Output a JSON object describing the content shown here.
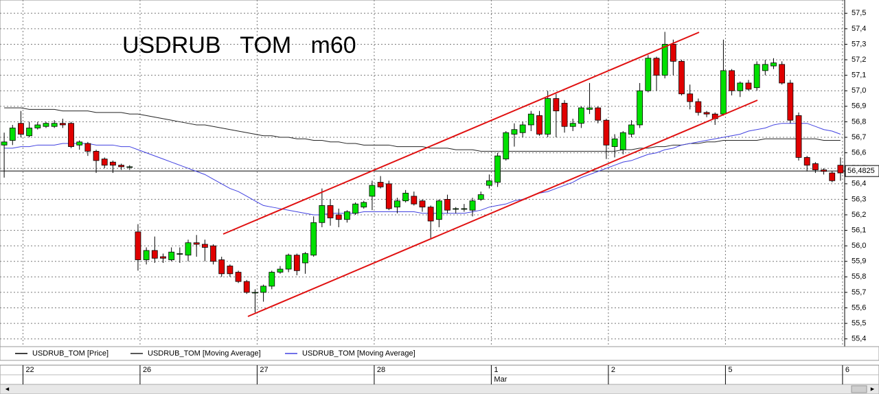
{
  "chart_data": {
    "type": "candlestick",
    "title": "USDRUB   TOM   m60",
    "categories": [
      null,
      null,
      "22",
      null,
      null,
      null,
      null,
      null,
      null,
      null,
      null,
      null,
      null,
      null,
      null,
      null,
      "26",
      null,
      null,
      null,
      null,
      null,
      null,
      null,
      null,
      null,
      null,
      null,
      null,
      null,
      "27",
      null,
      null,
      null,
      null,
      null,
      null,
      null,
      null,
      null,
      null,
      null,
      null,
      null,
      "28",
      null,
      null,
      null,
      null,
      null,
      null,
      null,
      null,
      null,
      null,
      null,
      null,
      null,
      "1",
      null,
      null,
      null,
      null,
      null,
      null,
      null,
      null,
      null,
      null,
      null,
      null,
      null,
      "2",
      null,
      null,
      null,
      null,
      null,
      null,
      null,
      null,
      null,
      null,
      null,
      null,
      null,
      "5",
      null,
      null,
      null,
      null,
      null,
      null,
      null,
      null,
      null,
      null,
      null,
      null,
      null,
      "6"
    ],
    "month_label": "Mar",
    "ylim": [
      55.35,
      57.55
    ],
    "yticks": [
      {
        "value": 55.4,
        "label": "55,4"
      },
      {
        "value": 55.5,
        "label": "55,5"
      },
      {
        "value": 55.6,
        "label": "55,6"
      },
      {
        "value": 55.7,
        "label": "55,7"
      },
      {
        "value": 55.8,
        "label": "55,8"
      },
      {
        "value": 55.9,
        "label": "55,9"
      },
      {
        "value": 56.0,
        "label": "56,0"
      },
      {
        "value": 56.1,
        "label": "56,1"
      },
      {
        "value": 56.2,
        "label": "56,2"
      },
      {
        "value": 56.3,
        "label": "56,3"
      },
      {
        "value": 56.4,
        "label": "56,4"
      },
      {
        "value": 56.5,
        "label": "56,5"
      },
      {
        "value": 56.6,
        "label": "56,6"
      },
      {
        "value": 56.7,
        "label": "56,7"
      },
      {
        "value": 56.8,
        "label": "56,8"
      },
      {
        "value": 56.9,
        "label": "56,9"
      },
      {
        "value": 57.0,
        "label": "57,0"
      },
      {
        "value": 57.1,
        "label": "57,1"
      },
      {
        "value": 57.2,
        "label": "57,2"
      },
      {
        "value": 57.3,
        "label": "57,3"
      },
      {
        "value": 57.4,
        "label": "57,4"
      },
      {
        "value": 57.5,
        "label": "57,5"
      }
    ],
    "grid": true,
    "last_price": {
      "value": 56.4825,
      "label": "56,4825"
    },
    "series": [
      {
        "name": "USDRUB_TOM [Price]",
        "color": "#000000",
        "up_color": "#00e000",
        "down_color": "#e00000",
        "open": [
          56.65,
          56.68,
          56.79,
          56.71,
          56.76,
          56.77,
          56.77,
          56.79,
          56.79,
          56.65,
          56.66,
          56.61,
          56.56,
          56.54,
          56.52,
          56.51,
          56.09,
          55.91,
          55.97,
          55.93,
          55.91,
          55.95,
          55.94,
          56.02,
          56.01,
          56.0,
          55.91,
          55.87,
          55.83,
          55.77,
          55.7,
          55.7,
          55.74,
          55.83,
          55.85,
          55.94,
          55.89,
          55.94,
          56.15,
          56.26,
          56.2,
          56.17,
          56.21,
          56.25,
          56.32,
          56.41,
          56.4,
          56.25,
          56.29,
          56.32,
          56.29,
          56.25,
          56.17,
          56.3,
          56.24,
          56.24,
          56.23,
          56.3,
          56.39,
          56.41,
          56.56,
          56.72,
          56.73,
          56.78,
          56.84,
          56.72,
          56.95,
          56.92,
          56.77,
          56.79,
          56.88,
          56.89,
          56.81,
          56.64,
          56.62,
          56.72,
          56.78,
          57.0,
          57.21,
          57.1,
          57.3,
          57.19,
          56.98,
          56.93,
          56.86,
          56.85,
          56.85,
          57.13,
          57.0,
          57.05,
          57.02,
          57.13,
          57.16,
          57.17,
          57.05,
          56.84,
          56.57,
          56.53,
          56.49,
          56.47,
          56.52
        ],
        "high": [
          56.73,
          56.78,
          56.87,
          56.8,
          56.8,
          56.8,
          56.81,
          56.82,
          56.8,
          56.68,
          56.67,
          56.62,
          56.57,
          56.55,
          56.53,
          56.52,
          56.14,
          55.99,
          56.06,
          55.95,
          55.99,
          55.99,
          56.04,
          56.07,
          56.04,
          56.01,
          55.93,
          55.88,
          55.84,
          55.78,
          55.72,
          55.75,
          55.84,
          55.87,
          55.95,
          55.95,
          55.96,
          56.19,
          56.37,
          56.3,
          56.24,
          56.23,
          56.28,
          56.29,
          56.42,
          56.45,
          56.42,
          56.31,
          56.36,
          56.35,
          56.3,
          56.26,
          56.3,
          56.33,
          56.25,
          56.27,
          56.31,
          56.35,
          56.46,
          56.6,
          56.74,
          56.79,
          56.8,
          56.87,
          56.87,
          57.0,
          56.98,
          56.94,
          56.82,
          56.9,
          57.05,
          56.9,
          56.82,
          56.72,
          56.74,
          56.81,
          57.05,
          57.23,
          57.22,
          57.38,
          57.33,
          57.2,
          57.04,
          56.95,
          56.87,
          56.86,
          57.33,
          57.14,
          57.06,
          57.07,
          57.19,
          57.2,
          57.21,
          57.19,
          57.07,
          56.86,
          56.58,
          56.54,
          56.5,
          56.48,
          56.57
        ],
        "low": [
          56.44,
          56.65,
          56.7,
          56.7,
          56.75,
          56.76,
          56.76,
          56.76,
          56.63,
          56.62,
          56.58,
          56.47,
          56.5,
          56.47,
          56.49,
          56.49,
          55.84,
          55.88,
          55.89,
          55.89,
          55.9,
          55.89,
          55.9,
          55.93,
          55.9,
          55.88,
          55.8,
          55.8,
          55.76,
          55.69,
          55.57,
          55.64,
          55.72,
          55.82,
          55.83,
          55.81,
          55.82,
          55.93,
          56.12,
          56.13,
          56.12,
          56.15,
          56.2,
          56.24,
          56.23,
          56.37,
          56.23,
          56.21,
          56.28,
          56.26,
          56.22,
          56.05,
          56.12,
          56.21,
          56.21,
          56.22,
          56.19,
          56.29,
          56.37,
          56.38,
          56.55,
          56.64,
          56.7,
          56.74,
          56.71,
          56.7,
          56.7,
          56.73,
          56.74,
          56.76,
          56.85,
          56.79,
          56.56,
          56.57,
          56.59,
          56.7,
          56.76,
          56.99,
          57.0,
          57.08,
          57.1,
          56.97,
          56.88,
          56.84,
          56.83,
          56.78,
          56.84,
          56.97,
          56.96,
          57.0,
          57.0,
          57.1,
          57.14,
          57.04,
          56.79,
          56.55,
          56.48,
          56.47,
          56.46,
          56.41,
          56.42
        ],
        "close": [
          56.67,
          56.76,
          56.72,
          56.76,
          56.78,
          56.79,
          56.79,
          56.78,
          56.64,
          56.67,
          56.61,
          56.55,
          56.52,
          56.52,
          56.51,
          56.51,
          55.91,
          55.97,
          55.92,
          55.92,
          55.96,
          55.95,
          56.02,
          56.01,
          55.99,
          55.9,
          55.82,
          55.82,
          55.77,
          55.7,
          55.7,
          55.74,
          55.83,
          55.85,
          55.94,
          55.84,
          55.95,
          56.15,
          56.26,
          56.18,
          56.17,
          56.22,
          56.27,
          56.28,
          56.39,
          56.38,
          56.24,
          56.29,
          56.34,
          56.27,
          56.25,
          56.16,
          56.29,
          56.23,
          56.24,
          56.24,
          56.29,
          56.33,
          56.42,
          56.58,
          56.73,
          56.75,
          56.78,
          56.85,
          56.72,
          56.95,
          56.87,
          56.77,
          56.79,
          56.89,
          56.89,
          56.81,
          56.65,
          56.69,
          56.73,
          56.78,
          57.0,
          57.21,
          57.1,
          57.3,
          57.19,
          56.98,
          56.93,
          56.86,
          56.85,
          56.82,
          57.13,
          57.0,
          57.05,
          57.01,
          57.17,
          57.17,
          57.18,
          57.05,
          56.81,
          56.57,
          56.52,
          56.49,
          56.48,
          56.42,
          56.47
        ]
      },
      {
        "name": "USDRUB_TOM [Moving Average]",
        "color": "#222222",
        "values": [
          56.89,
          56.89,
          56.89,
          56.88,
          56.88,
          56.88,
          56.88,
          56.87,
          56.87,
          56.87,
          56.87,
          56.86,
          56.86,
          56.86,
          56.86,
          56.85,
          56.85,
          56.84,
          56.83,
          56.82,
          56.81,
          56.8,
          56.79,
          56.78,
          56.78,
          56.77,
          56.76,
          56.75,
          56.74,
          56.73,
          56.72,
          56.71,
          56.71,
          56.7,
          56.7,
          56.69,
          56.69,
          56.68,
          56.68,
          56.67,
          56.67,
          56.66,
          56.66,
          56.65,
          56.65,
          56.65,
          56.65,
          56.64,
          56.64,
          56.64,
          56.64,
          56.63,
          56.63,
          56.63,
          56.62,
          56.62,
          56.62,
          56.61,
          56.61,
          56.61,
          56.61,
          56.61,
          56.61,
          56.61,
          56.61,
          56.61,
          56.61,
          56.61,
          56.61,
          56.61,
          56.61,
          56.61,
          56.61,
          56.61,
          56.62,
          56.62,
          56.63,
          56.63,
          56.64,
          56.64,
          56.65,
          56.65,
          56.66,
          56.66,
          56.67,
          56.67,
          56.68,
          56.68,
          56.68,
          56.68,
          56.68,
          56.69,
          56.69,
          56.69,
          56.69,
          56.69,
          56.69,
          56.69,
          56.68,
          56.68,
          56.68
        ]
      },
      {
        "name": "USDRUB_TOM [Moving Average]",
        "color": "#4040e0",
        "values": [
          56.63,
          56.63,
          56.64,
          56.64,
          56.65,
          56.65,
          56.65,
          56.66,
          56.66,
          56.66,
          56.66,
          56.65,
          56.65,
          56.65,
          56.64,
          56.64,
          56.62,
          56.6,
          56.58,
          56.56,
          56.54,
          56.52,
          56.5,
          56.48,
          56.46,
          56.43,
          56.4,
          56.37,
          56.35,
          56.32,
          56.29,
          56.26,
          56.25,
          56.24,
          56.23,
          56.22,
          56.21,
          56.2,
          56.2,
          56.21,
          56.21,
          56.21,
          56.21,
          56.22,
          56.22,
          56.22,
          56.22,
          56.22,
          56.22,
          56.22,
          56.21,
          56.21,
          56.21,
          56.21,
          56.21,
          56.21,
          56.22,
          56.23,
          56.25,
          56.26,
          56.27,
          56.29,
          56.3,
          56.32,
          56.34,
          56.35,
          56.37,
          56.39,
          56.41,
          56.44,
          56.46,
          56.48,
          56.5,
          56.52,
          56.54,
          56.55,
          56.57,
          56.59,
          56.6,
          56.62,
          56.63,
          56.65,
          56.66,
          56.67,
          56.68,
          56.69,
          56.7,
          56.71,
          56.72,
          56.74,
          56.75,
          56.76,
          56.78,
          56.79,
          56.79,
          56.79,
          56.79,
          56.77,
          56.75,
          56.74,
          56.72
        ]
      }
    ]
  }
}
